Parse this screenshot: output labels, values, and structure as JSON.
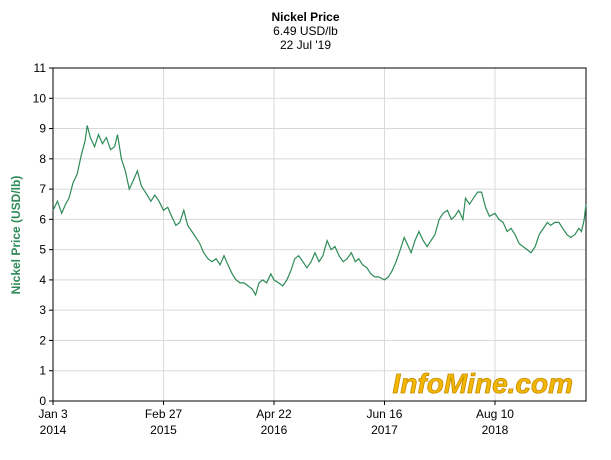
{
  "chart_data": {
    "type": "line",
    "title": "Nickel Price",
    "subtitle_price": "6.49 USD/lb",
    "subtitle_date": "22 Jul '19",
    "ylabel": "Nickel Price (USD/lb)",
    "xlabel": "",
    "ylim": [
      0,
      11
    ],
    "y_ticks": [
      0,
      1,
      2,
      3,
      4,
      5,
      6,
      7,
      8,
      9,
      10,
      11
    ],
    "x_ticks": [
      {
        "date": "2014-01-03",
        "label1": "Jan 3",
        "label2": "2014"
      },
      {
        "date": "2015-02-27",
        "label1": "Feb 27",
        "label2": "2015"
      },
      {
        "date": "2016-04-22",
        "label1": "Apr 22",
        "label2": "2016"
      },
      {
        "date": "2017-06-16",
        "label1": "Jun 16",
        "label2": "2017"
      },
      {
        "date": "2018-08-10",
        "label1": "Aug 10",
        "label2": "2018"
      }
    ],
    "xlim": [
      "2014-01-03",
      "2019-07-22"
    ],
    "grid": true,
    "line_color": "#2e8b57",
    "watermark": "InfoMine.com",
    "series": [
      {
        "points": [
          [
            "2014-01-03",
            6.3
          ],
          [
            "2014-01-20",
            6.6
          ],
          [
            "2014-02-05",
            6.2
          ],
          [
            "2014-02-20",
            6.5
          ],
          [
            "2014-03-05",
            6.7
          ],
          [
            "2014-03-20",
            7.2
          ],
          [
            "2014-04-05",
            7.5
          ],
          [
            "2014-04-20",
            8.1
          ],
          [
            "2014-05-05",
            8.6
          ],
          [
            "2014-05-13",
            9.1
          ],
          [
            "2014-05-25",
            8.7
          ],
          [
            "2014-06-10",
            8.4
          ],
          [
            "2014-06-25",
            8.8
          ],
          [
            "2014-07-10",
            8.5
          ],
          [
            "2014-07-25",
            8.7
          ],
          [
            "2014-08-10",
            8.3
          ],
          [
            "2014-08-25",
            8.4
          ],
          [
            "2014-09-05",
            8.8
          ],
          [
            "2014-09-20",
            8.0
          ],
          [
            "2014-10-05",
            7.6
          ],
          [
            "2014-10-20",
            7.0
          ],
          [
            "2014-11-05",
            7.3
          ],
          [
            "2014-11-20",
            7.6
          ],
          [
            "2014-12-05",
            7.1
          ],
          [
            "2014-12-20",
            6.9
          ],
          [
            "2015-01-10",
            6.6
          ],
          [
            "2015-01-25",
            6.8
          ],
          [
            "2015-02-10",
            6.6
          ],
          [
            "2015-02-27",
            6.3
          ],
          [
            "2015-03-15",
            6.4
          ],
          [
            "2015-03-30",
            6.1
          ],
          [
            "2015-04-15",
            5.8
          ],
          [
            "2015-04-30",
            5.9
          ],
          [
            "2015-05-15",
            6.3
          ],
          [
            "2015-05-30",
            5.8
          ],
          [
            "2015-06-15",
            5.6
          ],
          [
            "2015-06-30",
            5.4
          ],
          [
            "2015-07-15",
            5.2
          ],
          [
            "2015-07-30",
            4.9
          ],
          [
            "2015-08-15",
            4.7
          ],
          [
            "2015-08-30",
            4.6
          ],
          [
            "2015-09-15",
            4.7
          ],
          [
            "2015-09-30",
            4.5
          ],
          [
            "2015-10-15",
            4.8
          ],
          [
            "2015-10-30",
            4.5
          ],
          [
            "2015-11-15",
            4.2
          ],
          [
            "2015-11-30",
            4.0
          ],
          [
            "2015-12-15",
            3.9
          ],
          [
            "2015-12-30",
            3.9
          ],
          [
            "2016-01-15",
            3.8
          ],
          [
            "2016-01-30",
            3.7
          ],
          [
            "2016-02-12",
            3.5
          ],
          [
            "2016-02-25",
            3.9
          ],
          [
            "2016-03-10",
            4.0
          ],
          [
            "2016-03-25",
            3.9
          ],
          [
            "2016-04-10",
            4.2
          ],
          [
            "2016-04-22",
            4.0
          ],
          [
            "2016-05-10",
            3.9
          ],
          [
            "2016-05-25",
            3.8
          ],
          [
            "2016-06-10",
            4.0
          ],
          [
            "2016-06-25",
            4.3
          ],
          [
            "2016-07-10",
            4.7
          ],
          [
            "2016-07-25",
            4.8
          ],
          [
            "2016-08-10",
            4.6
          ],
          [
            "2016-08-25",
            4.4
          ],
          [
            "2016-09-10",
            4.6
          ],
          [
            "2016-09-25",
            4.9
          ],
          [
            "2016-10-10",
            4.6
          ],
          [
            "2016-10-25",
            4.8
          ],
          [
            "2016-11-10",
            5.3
          ],
          [
            "2016-11-25",
            5.0
          ],
          [
            "2016-12-10",
            5.1
          ],
          [
            "2016-12-25",
            4.8
          ],
          [
            "2017-01-10",
            4.6
          ],
          [
            "2017-01-25",
            4.7
          ],
          [
            "2017-02-10",
            4.9
          ],
          [
            "2017-02-25",
            4.6
          ],
          [
            "2017-03-10",
            4.7
          ],
          [
            "2017-03-25",
            4.5
          ],
          [
            "2017-04-10",
            4.4
          ],
          [
            "2017-04-25",
            4.2
          ],
          [
            "2017-05-10",
            4.1
          ],
          [
            "2017-05-25",
            4.1
          ],
          [
            "2017-06-16",
            4.0
          ],
          [
            "2017-07-01",
            4.1
          ],
          [
            "2017-07-15",
            4.3
          ],
          [
            "2017-07-30",
            4.6
          ],
          [
            "2017-08-15",
            5.0
          ],
          [
            "2017-08-30",
            5.4
          ],
          [
            "2017-09-10",
            5.2
          ],
          [
            "2017-09-25",
            4.9
          ],
          [
            "2017-10-10",
            5.3
          ],
          [
            "2017-10-25",
            5.6
          ],
          [
            "2017-11-10",
            5.3
          ],
          [
            "2017-11-25",
            5.1
          ],
          [
            "2017-12-10",
            5.3
          ],
          [
            "2017-12-25",
            5.5
          ],
          [
            "2018-01-10",
            6.0
          ],
          [
            "2018-01-25",
            6.2
          ],
          [
            "2018-02-10",
            6.3
          ],
          [
            "2018-02-25",
            6.0
          ],
          [
            "2018-03-10",
            6.1
          ],
          [
            "2018-03-25",
            6.3
          ],
          [
            "2018-04-10",
            6.0
          ],
          [
            "2018-04-20",
            6.7
          ],
          [
            "2018-05-05",
            6.5
          ],
          [
            "2018-05-20",
            6.7
          ],
          [
            "2018-06-05",
            6.9
          ],
          [
            "2018-06-20",
            6.9
          ],
          [
            "2018-07-05",
            6.4
          ],
          [
            "2018-07-20",
            6.1
          ],
          [
            "2018-08-10",
            6.2
          ],
          [
            "2018-08-25",
            6.0
          ],
          [
            "2018-09-10",
            5.9
          ],
          [
            "2018-09-25",
            5.6
          ],
          [
            "2018-10-10",
            5.7
          ],
          [
            "2018-10-25",
            5.5
          ],
          [
            "2018-11-10",
            5.2
          ],
          [
            "2018-11-25",
            5.1
          ],
          [
            "2018-12-10",
            5.0
          ],
          [
            "2018-12-25",
            4.9
          ],
          [
            "2019-01-10",
            5.1
          ],
          [
            "2019-01-25",
            5.5
          ],
          [
            "2019-02-10",
            5.7
          ],
          [
            "2019-02-25",
            5.9
          ],
          [
            "2019-03-10",
            5.8
          ],
          [
            "2019-03-25",
            5.9
          ],
          [
            "2019-04-10",
            5.9
          ],
          [
            "2019-04-25",
            5.7
          ],
          [
            "2019-05-10",
            5.5
          ],
          [
            "2019-05-25",
            5.4
          ],
          [
            "2019-06-10",
            5.5
          ],
          [
            "2019-06-25",
            5.7
          ],
          [
            "2019-07-05",
            5.6
          ],
          [
            "2019-07-15",
            6.0
          ],
          [
            "2019-07-22",
            6.5
          ]
        ]
      }
    ]
  }
}
